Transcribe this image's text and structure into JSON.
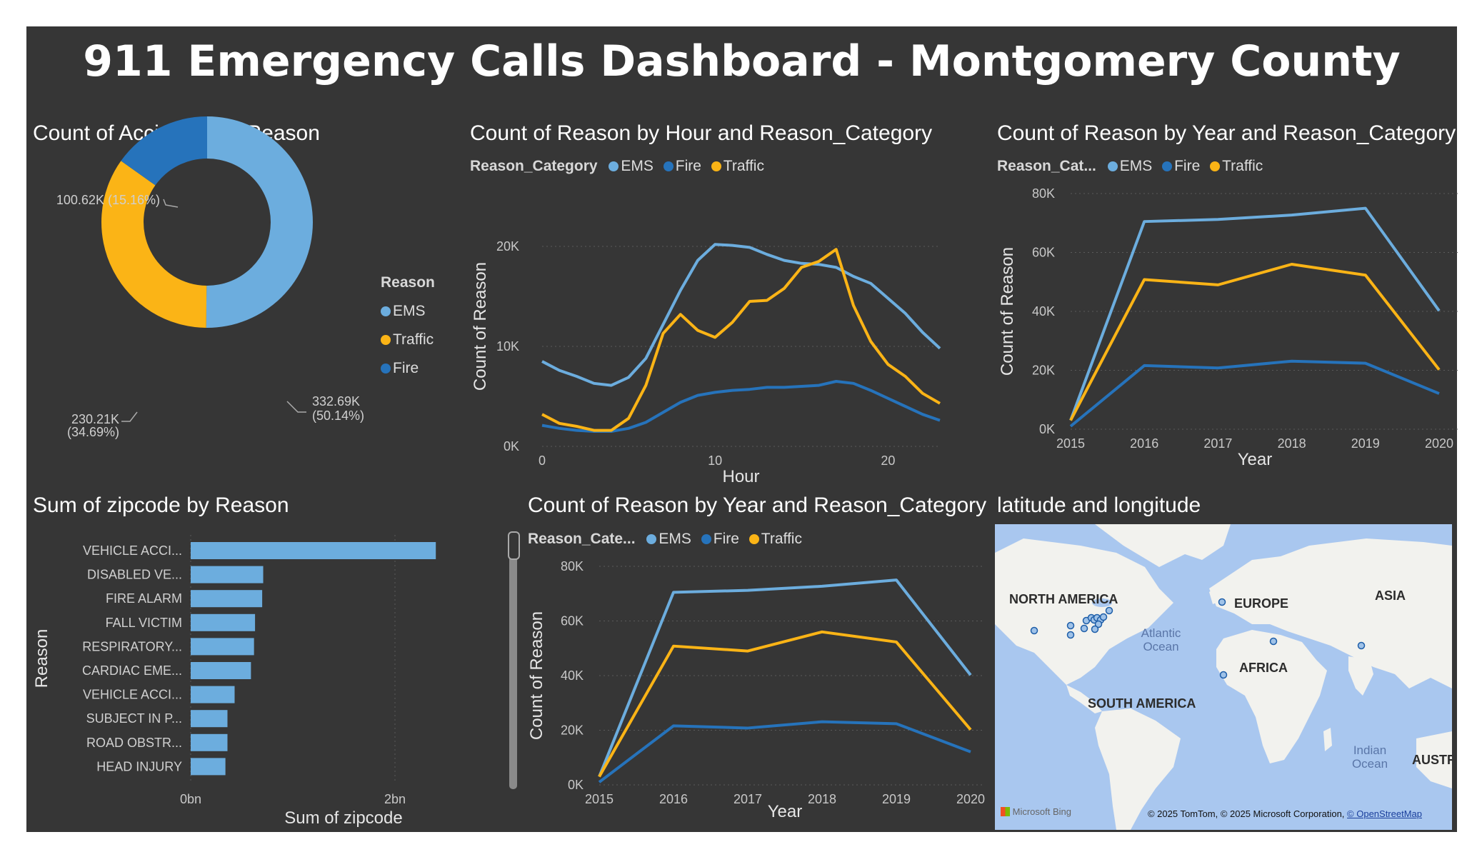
{
  "title": "911 Emergency Calls Dashboard - Montgomery County",
  "colors": {
    "ems": "#6cadde",
    "fire": "#2673bb",
    "traffic": "#fbb416",
    "background": "#363636",
    "grid": "#5a5a5a",
    "text": "#d0d0d0"
  },
  "donut": {
    "title": "Count of Accidents by Reason",
    "legend_title": "Reason",
    "legend_items": [
      "EMS",
      "Traffic",
      "Fire"
    ],
    "labels": {
      "ems_value": "332.69K",
      "ems_pct": "(50.14%)",
      "traffic_value": "230.21K",
      "traffic_pct": "(34.69%)",
      "fire": "100.62K (15.16%)"
    }
  },
  "hour_chart": {
    "title": "Count of Reason by Hour and Reason_Category",
    "legend_title": "Reason_Category",
    "legend_items": [
      "EMS",
      "Fire",
      "Traffic"
    ],
    "xlabel": "Hour",
    "ylabel": "Count of Reason",
    "yticks": [
      "0K",
      "10K",
      "20K"
    ],
    "xticks": [
      "0",
      "10",
      "20"
    ]
  },
  "year_chart": {
    "title": "Count of Reason by Year and Reason_Category",
    "legend_title": "Reason_Cat...",
    "legend_items": [
      "EMS",
      "Fire",
      "Traffic"
    ],
    "xlabel": "Year",
    "ylabel": "Count of Reason",
    "yticks": [
      "0K",
      "20K",
      "40K",
      "60K",
      "80K"
    ],
    "xticks": [
      "2015",
      "2016",
      "2017",
      "2018",
      "2019",
      "2020"
    ]
  },
  "bar_chart": {
    "title": "Sum of zipcode by Reason",
    "xlabel": "Sum of zipcode",
    "ylabel": "Reason",
    "xticks": [
      "0bn",
      "2bn"
    ]
  },
  "year_chart2": {
    "title": "Count of Reason by Year and Reason_Category",
    "legend_title": "Reason_Cate...",
    "legend_items": [
      "EMS",
      "Fire",
      "Traffic"
    ],
    "xlabel": "Year",
    "ylabel": "Count of Reason",
    "yticks": [
      "0K",
      "20K",
      "40K",
      "60K",
      "80K"
    ],
    "xticks": [
      "2015",
      "2016",
      "2017",
      "2018",
      "2019",
      "2020"
    ]
  },
  "map": {
    "title": "latitude and longitude",
    "labels": {
      "na": "NORTH AMERICA",
      "eu": "EUROPE",
      "asia": "ASIA",
      "africa": "AFRICA",
      "sa": "SOUTH AMERICA",
      "aus": "AUSTR",
      "atlantic": "Atlantic Ocean",
      "indian": "Indian Ocean"
    },
    "bing": "Microsoft Bing",
    "attribution": "© 2025 TomTom, © 2025 Microsoft Corporation, ",
    "osm": "© OpenStreetMap"
  },
  "chart_data": [
    {
      "type": "pie",
      "title": "Count of Accidents by Reason",
      "categories": [
        "EMS",
        "Traffic",
        "Fire"
      ],
      "values": [
        332690,
        230210,
        100620
      ],
      "percentages": [
        50.14,
        34.69,
        15.16
      ]
    },
    {
      "type": "line",
      "title": "Count of Reason by Hour and Reason_Category",
      "xlabel": "Hour",
      "ylabel": "Count of Reason",
      "x": [
        0,
        1,
        2,
        3,
        4,
        5,
        6,
        7,
        8,
        9,
        10,
        11,
        12,
        13,
        14,
        15,
        16,
        17,
        18,
        19,
        20,
        21,
        22,
        23
      ],
      "ylim": [
        0,
        24000
      ],
      "series": [
        {
          "name": "EMS",
          "values": [
            8500,
            7600,
            7000,
            6300,
            6100,
            6900,
            8800,
            12200,
            15600,
            18600,
            20200,
            20100,
            19900,
            19200,
            18600,
            18300,
            18200,
            17900,
            17000,
            16300,
            14800,
            13300,
            11400,
            9800
          ]
        },
        {
          "name": "Fire",
          "values": [
            2100,
            1800,
            1600,
            1500,
            1500,
            1800,
            2400,
            3400,
            4400,
            5100,
            5400,
            5600,
            5700,
            5900,
            5900,
            6000,
            6100,
            6500,
            6300,
            5600,
            4800,
            4000,
            3200,
            2600
          ]
        },
        {
          "name": "Traffic",
          "values": [
            3200,
            2300,
            2000,
            1600,
            1600,
            2800,
            6100,
            11300,
            13200,
            11600,
            10900,
            12400,
            14500,
            14600,
            15800,
            17900,
            18500,
            19700,
            14100,
            10500,
            8200,
            7000,
            5300,
            4300
          ]
        }
      ]
    },
    {
      "type": "line",
      "title": "Count of Reason by Year and Reason_Category",
      "xlabel": "Year",
      "ylabel": "Count of Reason",
      "x": [
        2015,
        2016,
        2017,
        2018,
        2019,
        2020
      ],
      "ylim": [
        0,
        80000
      ],
      "series": [
        {
          "name": "EMS",
          "values": [
            3000,
            70500,
            71200,
            72700,
            75000,
            40200
          ]
        },
        {
          "name": "Fire",
          "values": [
            1000,
            21600,
            20800,
            23100,
            22400,
            12100
          ]
        },
        {
          "name": "Traffic",
          "values": [
            3000,
            50800,
            49000,
            56000,
            52300,
            20200
          ]
        }
      ]
    },
    {
      "type": "bar",
      "title": "Sum of zipcode by Reason",
      "xlabel": "Sum of zipcode",
      "ylabel": "Reason",
      "categories": [
        "VEHICLE ACCI...",
        "DISABLED VE...",
        "FIRE ALARM",
        "FALL VICTIM",
        "RESPIRATORY...",
        "CARDIAC EME...",
        "VEHICLE ACCI...",
        "SUBJECT IN P...",
        "ROAD OBSTR...",
        "HEAD INJURY"
      ],
      "values": [
        2.4,
        0.71,
        0.7,
        0.63,
        0.62,
        0.59,
        0.43,
        0.36,
        0.36,
        0.34
      ],
      "unit": "bn",
      "xlim": [
        0,
        2.5
      ]
    },
    {
      "type": "line",
      "title": "Count of Reason by Year and Reason_Category",
      "xlabel": "Year",
      "ylabel": "Count of Reason",
      "x": [
        2015,
        2016,
        2017,
        2018,
        2019,
        2020
      ],
      "ylim": [
        0,
        80000
      ],
      "series": [
        {
          "name": "EMS",
          "values": [
            3000,
            70500,
            71200,
            72700,
            75000,
            40200
          ]
        },
        {
          "name": "Fire",
          "values": [
            1000,
            21600,
            20800,
            23100,
            22400,
            12100
          ]
        },
        {
          "name": "Traffic",
          "values": [
            3000,
            50800,
            49000,
            56000,
            52300,
            20200
          ]
        }
      ]
    }
  ]
}
